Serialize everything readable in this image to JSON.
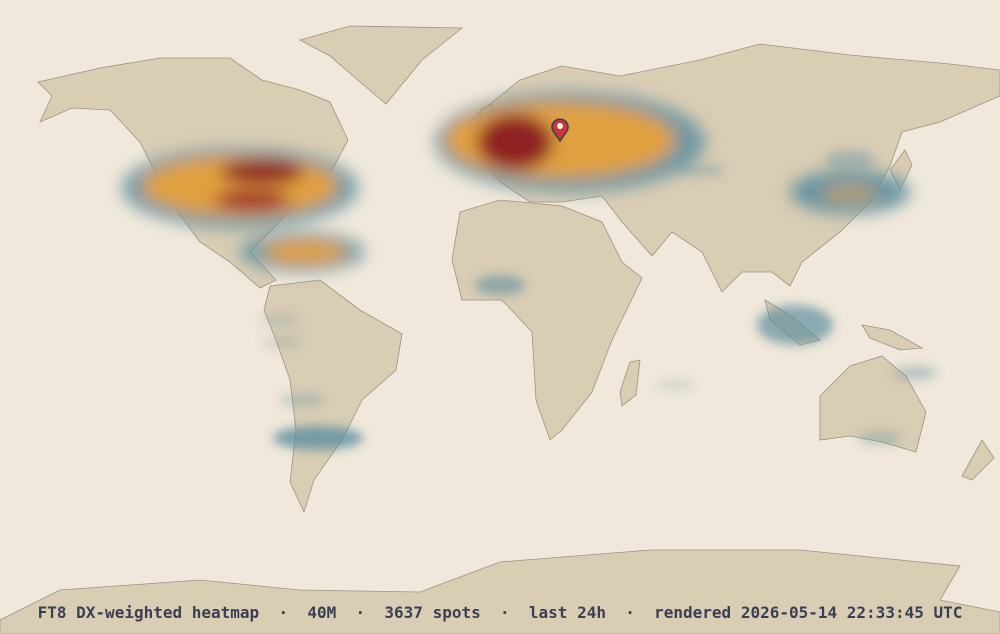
{
  "caption": "FT8 DX-weighted heatmap  ·  40M  ·  3637 spots  ·  last 24h  ·  rendered 2026-05-14 22:33:45 UTC"
}
